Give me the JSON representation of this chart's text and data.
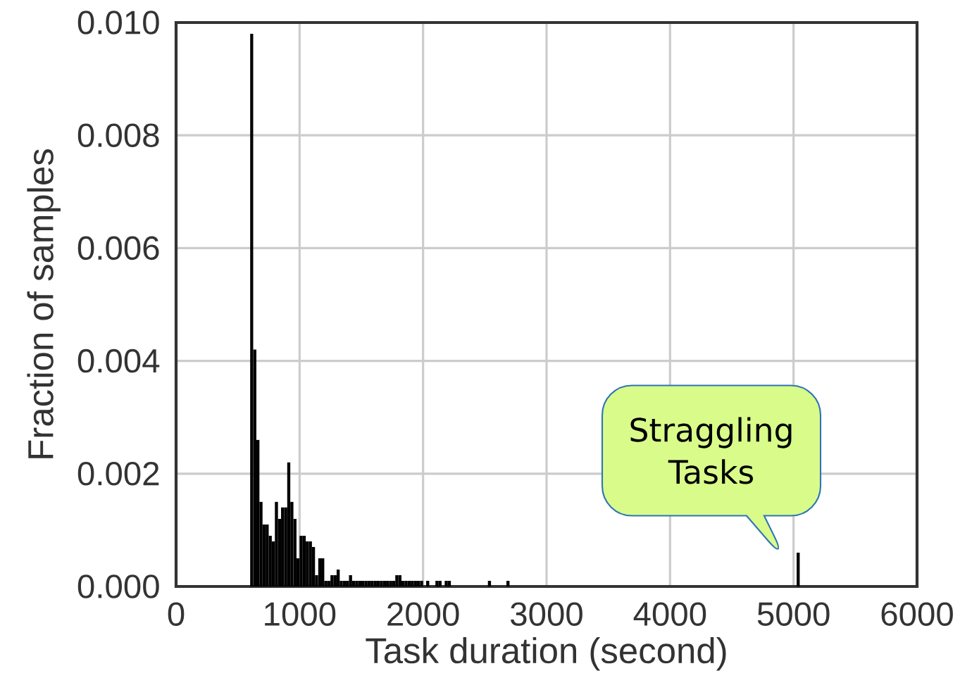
{
  "chart_data": {
    "type": "histogram",
    "xlabel": "Task duration (second)",
    "ylabel": "Fraction of samples",
    "bins": [
      600,
      625,
      650,
      675,
      700,
      725,
      750,
      775,
      800,
      825,
      850,
      875,
      900,
      925,
      950,
      975,
      1000,
      1025,
      1050,
      1075,
      1100,
      1125,
      1150,
      1175,
      1200,
      1225,
      1250,
      1275,
      1300,
      1325,
      1350,
      1375,
      1400,
      1425,
      1450,
      1475,
      1500,
      1525,
      1550,
      1575,
      1600,
      1625,
      1650,
      1675,
      1700,
      1725,
      1750,
      1775,
      1800,
      1825,
      1850,
      1875,
      1900,
      1925,
      1950,
      1975,
      2000,
      2025,
      2050,
      2100,
      2125,
      2150,
      2175,
      2200,
      2225,
      2525,
      2550,
      2675,
      2700,
      5025,
      5050
    ],
    "values": [
      0.0098,
      0.0042,
      0.0026,
      0.0015,
      0.0011,
      0.0011,
      0.0009,
      0.0008,
      0.0015,
      0.0012,
      0.0014,
      0.0014,
      0.0022,
      0.0015,
      0.0012,
      0.0005,
      0.0009,
      0.0009,
      0.0008,
      0.0008,
      0.0007,
      0.0002,
      0.0005,
      0.0005,
      0.0001,
      0.0001,
      0.0002,
      0.0002,
      0.0003,
      0.0001,
      0.0001,
      0.0001,
      0.0002,
      0.0001,
      0.0001,
      0.0001,
      0.0001,
      0.0001,
      0.0001,
      0.0001,
      0.0001,
      0.0001,
      0.0001,
      0.0001,
      0.0001,
      0.0001,
      0.0001,
      0.0002,
      0.0002,
      0.0001,
      0.0001,
      0.0001,
      0.0001,
      0.0001,
      0.0001,
      0.0001,
      0,
      0.0001,
      0,
      0.0001,
      0.0001,
      0,
      0.0001,
      0.0001,
      0,
      0.0001,
      0,
      0.0001,
      0,
      0.0006
    ],
    "color": "#000000",
    "xlim": [
      0,
      6000
    ],
    "xticks": [
      0,
      1000,
      2000,
      3000,
      4000,
      5000,
      6000
    ],
    "ylim": [
      0,
      0.01
    ],
    "yticks": [
      {
        "value": 0,
        "label": "0.000"
      },
      {
        "value": 0.002,
        "label": "0.002"
      },
      {
        "value": 0.004,
        "label": "0.004"
      },
      {
        "value": 0.006,
        "label": "0.006"
      },
      {
        "value": 0.008,
        "label": "0.008"
      },
      {
        "value": 0.01,
        "label": "0.010"
      }
    ],
    "grid": true,
    "annotations": [
      "Straggling Tasks"
    ]
  }
}
